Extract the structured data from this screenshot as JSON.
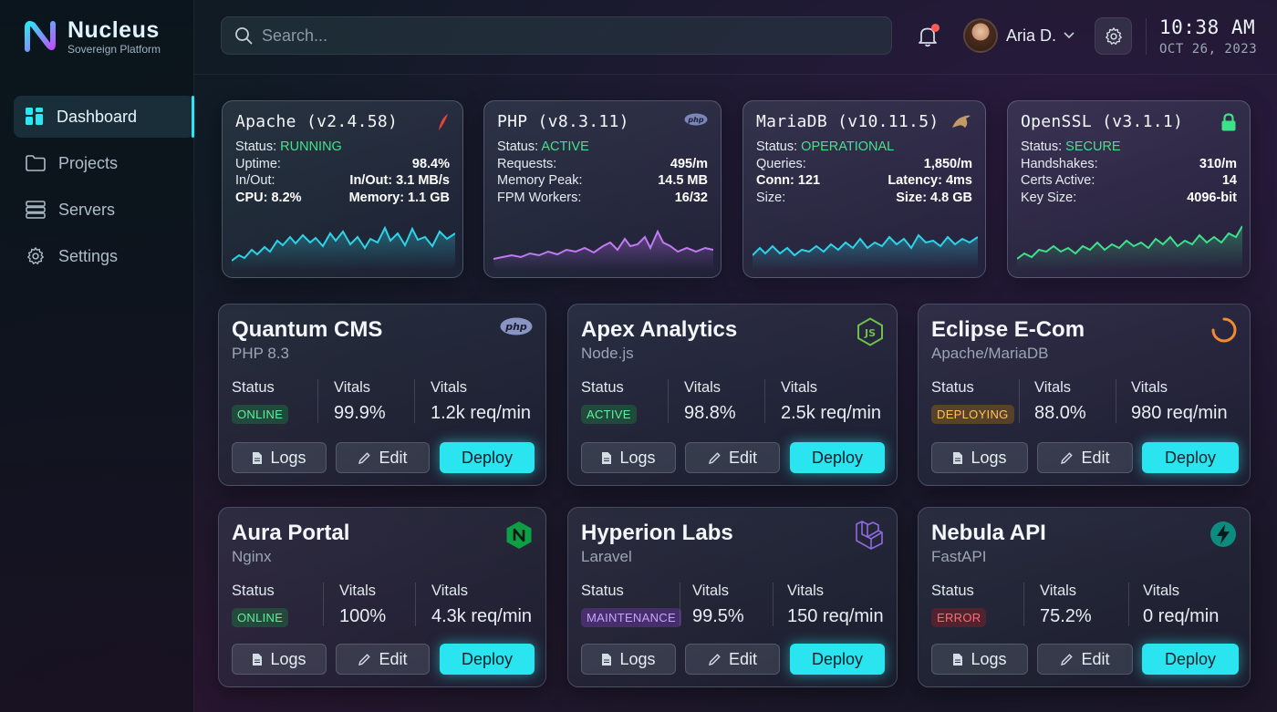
{
  "brand": {
    "name": "Nucleus",
    "subtitle": "Sovereign Platform"
  },
  "nav": [
    {
      "label": "Dashboard",
      "icon": "grid-icon",
      "active": true
    },
    {
      "label": "Projects",
      "icon": "folder-icon"
    },
    {
      "label": "Servers",
      "icon": "server-icon"
    },
    {
      "label": "Settings",
      "icon": "gear-icon"
    }
  ],
  "search": {
    "placeholder": "Search..."
  },
  "user": {
    "name": "Aria D."
  },
  "clock": {
    "time": "10:38 AM",
    "date": "OCT 26, 2023"
  },
  "services": [
    {
      "title": "Apache (v2.4.58)",
      "icon": "feather-icon",
      "status_label": "Status:",
      "status": "RUNNING",
      "rows": [
        [
          "Uptime:",
          "98.4%"
        ],
        [
          "In/Out:",
          "In/Out: 3.1 MB/s"
        ],
        [
          "CPU: 8.2%",
          "Memory: 1.1 GB"
        ]
      ],
      "color": "#2ed3e8"
    },
    {
      "title": "PHP (v8.3.11)",
      "icon": "php-icon",
      "status_label": "Status:",
      "status": "ACTIVE",
      "rows": [
        [
          "Requests:",
          "495/m"
        ],
        [
          "Memory Peak:",
          "14.5 MB"
        ],
        [
          "FPM Workers:",
          "16/32"
        ]
      ],
      "color": "#b066e8"
    },
    {
      "title": "MariaDB (v10.11.5)",
      "icon": "sea-lion-icon",
      "status_label": "Status:",
      "status": "OPERATIONAL",
      "rows": [
        [
          "Queries:",
          "1,850/m"
        ],
        [
          "Conn: 121",
          "Latency: 4ms"
        ],
        [
          "Size:",
          "Size: 4.8 GB"
        ]
      ],
      "color": "#2ed3e8"
    },
    {
      "title": "OpenSSL (v3.1.1)",
      "icon": "lock-icon",
      "status_label": "Status:",
      "status": "SECURE",
      "rows": [
        [
          "Handshakes:",
          "310/m"
        ],
        [
          "Certs Active:",
          "14"
        ],
        [
          "Key Size:",
          "4096-bit"
        ]
      ],
      "color": "#3fe08a"
    }
  ],
  "projects": [
    {
      "name": "Quantum CMS",
      "tech": "PHP 8.3",
      "logo": "php-icon",
      "status": "ONLINE",
      "status_kind": "online",
      "vitals_pct": "99.9%",
      "vitals_rate": "1.2k req/min"
    },
    {
      "name": "Apex Analytics",
      "tech": "Node.js",
      "logo": "nodejs-icon",
      "status": "ACTIVE",
      "status_kind": "online",
      "vitals_pct": "98.8%",
      "vitals_rate": "2.5k req/min"
    },
    {
      "name": "Eclipse E-Com",
      "tech": "Apache/MariaDB",
      "logo": "spinner-icon",
      "status": "DEPLOYING",
      "status_kind": "deploy",
      "vitals_pct": "88.0%",
      "vitals_rate": "980 req/min"
    },
    {
      "name": "Aura Portal",
      "tech": "Nginx",
      "logo": "nginx-icon",
      "status": "ONLINE",
      "status_kind": "online",
      "vitals_pct": "100%",
      "vitals_rate": "4.3k req/min"
    },
    {
      "name": "Hyperion Labs",
      "tech": "Laravel",
      "logo": "laravel-icon",
      "status": "MAINTENANCE",
      "status_kind": "maint",
      "vitals_pct": "99.5%",
      "vitals_rate": "150 req/min"
    },
    {
      "name": "Nebula API",
      "tech": "FastAPI",
      "logo": "fastapi-icon",
      "status": "ERROR",
      "status_kind": "err",
      "vitals_pct": "75.2%",
      "vitals_rate": "0 req/min"
    }
  ],
  "labels": {
    "status": "Status",
    "vitals": "Vitals",
    "logs": "Logs",
    "edit": "Edit",
    "deploy": "Deploy"
  },
  "colors": {
    "accent": "#2ae5f0",
    "ok": "#45e28a",
    "warn": "#ffc25a",
    "maint": "#c9a2ff",
    "error": "#ff6b73"
  }
}
